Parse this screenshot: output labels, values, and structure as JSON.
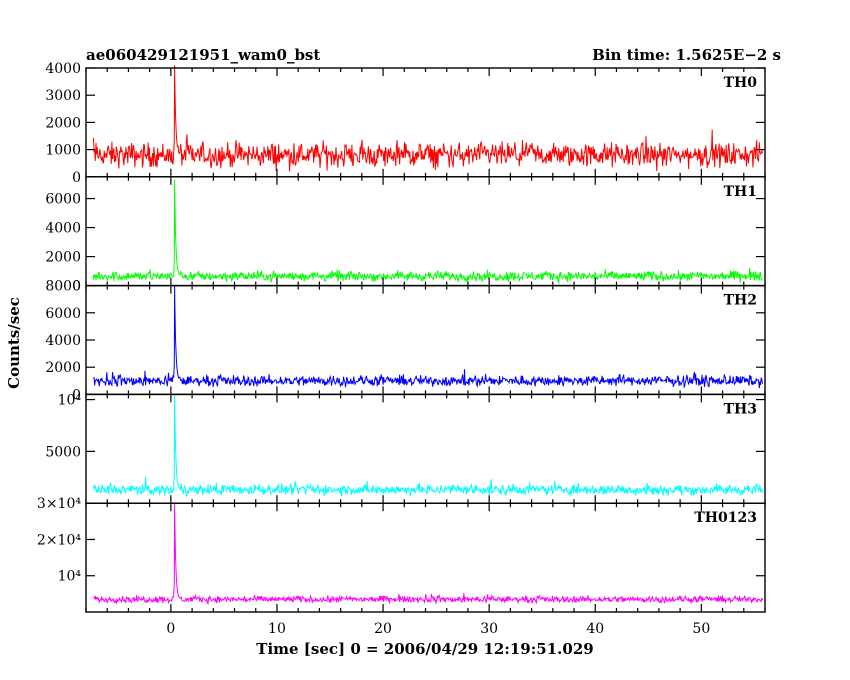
{
  "header": {
    "obs_id": "ae060429121951_wam0_bst",
    "bin_time": "Bin time: 1.5625E−2 s"
  },
  "chart_data": {
    "type": "line",
    "xlabel": "Time [sec] 0 = 2006/04/29 12:19:51.029",
    "ylabel": "Counts/sec",
    "xlim": [
      -8,
      56
    ],
    "x_ticks": [
      0,
      10,
      20,
      30,
      40,
      50
    ],
    "grid": false,
    "bin_time_s": 0.015625,
    "panels": [
      {
        "name": "TH0",
        "color": "#ff0000",
        "ylim": [
          0,
          4000
        ],
        "y_ticks": [
          {
            "v": 0,
            "t": "0"
          },
          {
            "v": 1000,
            "t": "1000"
          },
          {
            "v": 2000,
            "t": "2000"
          },
          {
            "v": 3000,
            "t": "3000"
          },
          {
            "v": 4000,
            "t": "4000"
          }
        ],
        "baseline": 800,
        "spread": 400,
        "peak": {
          "x": 0.35,
          "y": 4100
        }
      },
      {
        "name": "TH1",
        "color": "#00ff00",
        "ylim": [
          0,
          7500
        ],
        "y_ticks": [
          {
            "v": 0,
            "t": "0"
          },
          {
            "v": 2000,
            "t": "2000"
          },
          {
            "v": 4000,
            "t": "4000"
          },
          {
            "v": 6000,
            "t": "6000"
          }
        ],
        "baseline": 650,
        "spread": 300,
        "peak": {
          "x": 0.35,
          "y": 7300
        }
      },
      {
        "name": "TH2",
        "color": "#0000ff",
        "ylim": [
          0,
          8000
        ],
        "y_ticks": [
          {
            "v": 0,
            "t": "0"
          },
          {
            "v": 2000,
            "t": "2000"
          },
          {
            "v": 4000,
            "t": "4000"
          },
          {
            "v": 6000,
            "t": "6000"
          },
          {
            "v": 8000,
            "t": "8000"
          }
        ],
        "baseline": 1000,
        "spread": 350,
        "peak": {
          "x": 0.35,
          "y": 8000
        }
      },
      {
        "name": "TH3",
        "color": "#00ffff",
        "ylim": [
          0,
          10500
        ],
        "y_ticks": [
          {
            "v": 5000,
            "t": "5000"
          },
          {
            "v": 10000,
            "t": "10⁴"
          }
        ],
        "baseline": 1300,
        "spread": 450,
        "peak": {
          "x": 0.35,
          "y": 10500
        }
      },
      {
        "name": "TH0123",
        "color": "#ff00ff",
        "ylim": [
          0,
          30000
        ],
        "y_ticks": [
          {
            "v": 10000,
            "t": "10⁴"
          },
          {
            "v": 20000,
            "t": "2×10⁴"
          },
          {
            "v": 30000,
            "t": "3×10⁴"
          }
        ],
        "baseline": 3500,
        "spread": 800,
        "peak": {
          "x": 0.35,
          "y": 30000
        }
      }
    ]
  }
}
